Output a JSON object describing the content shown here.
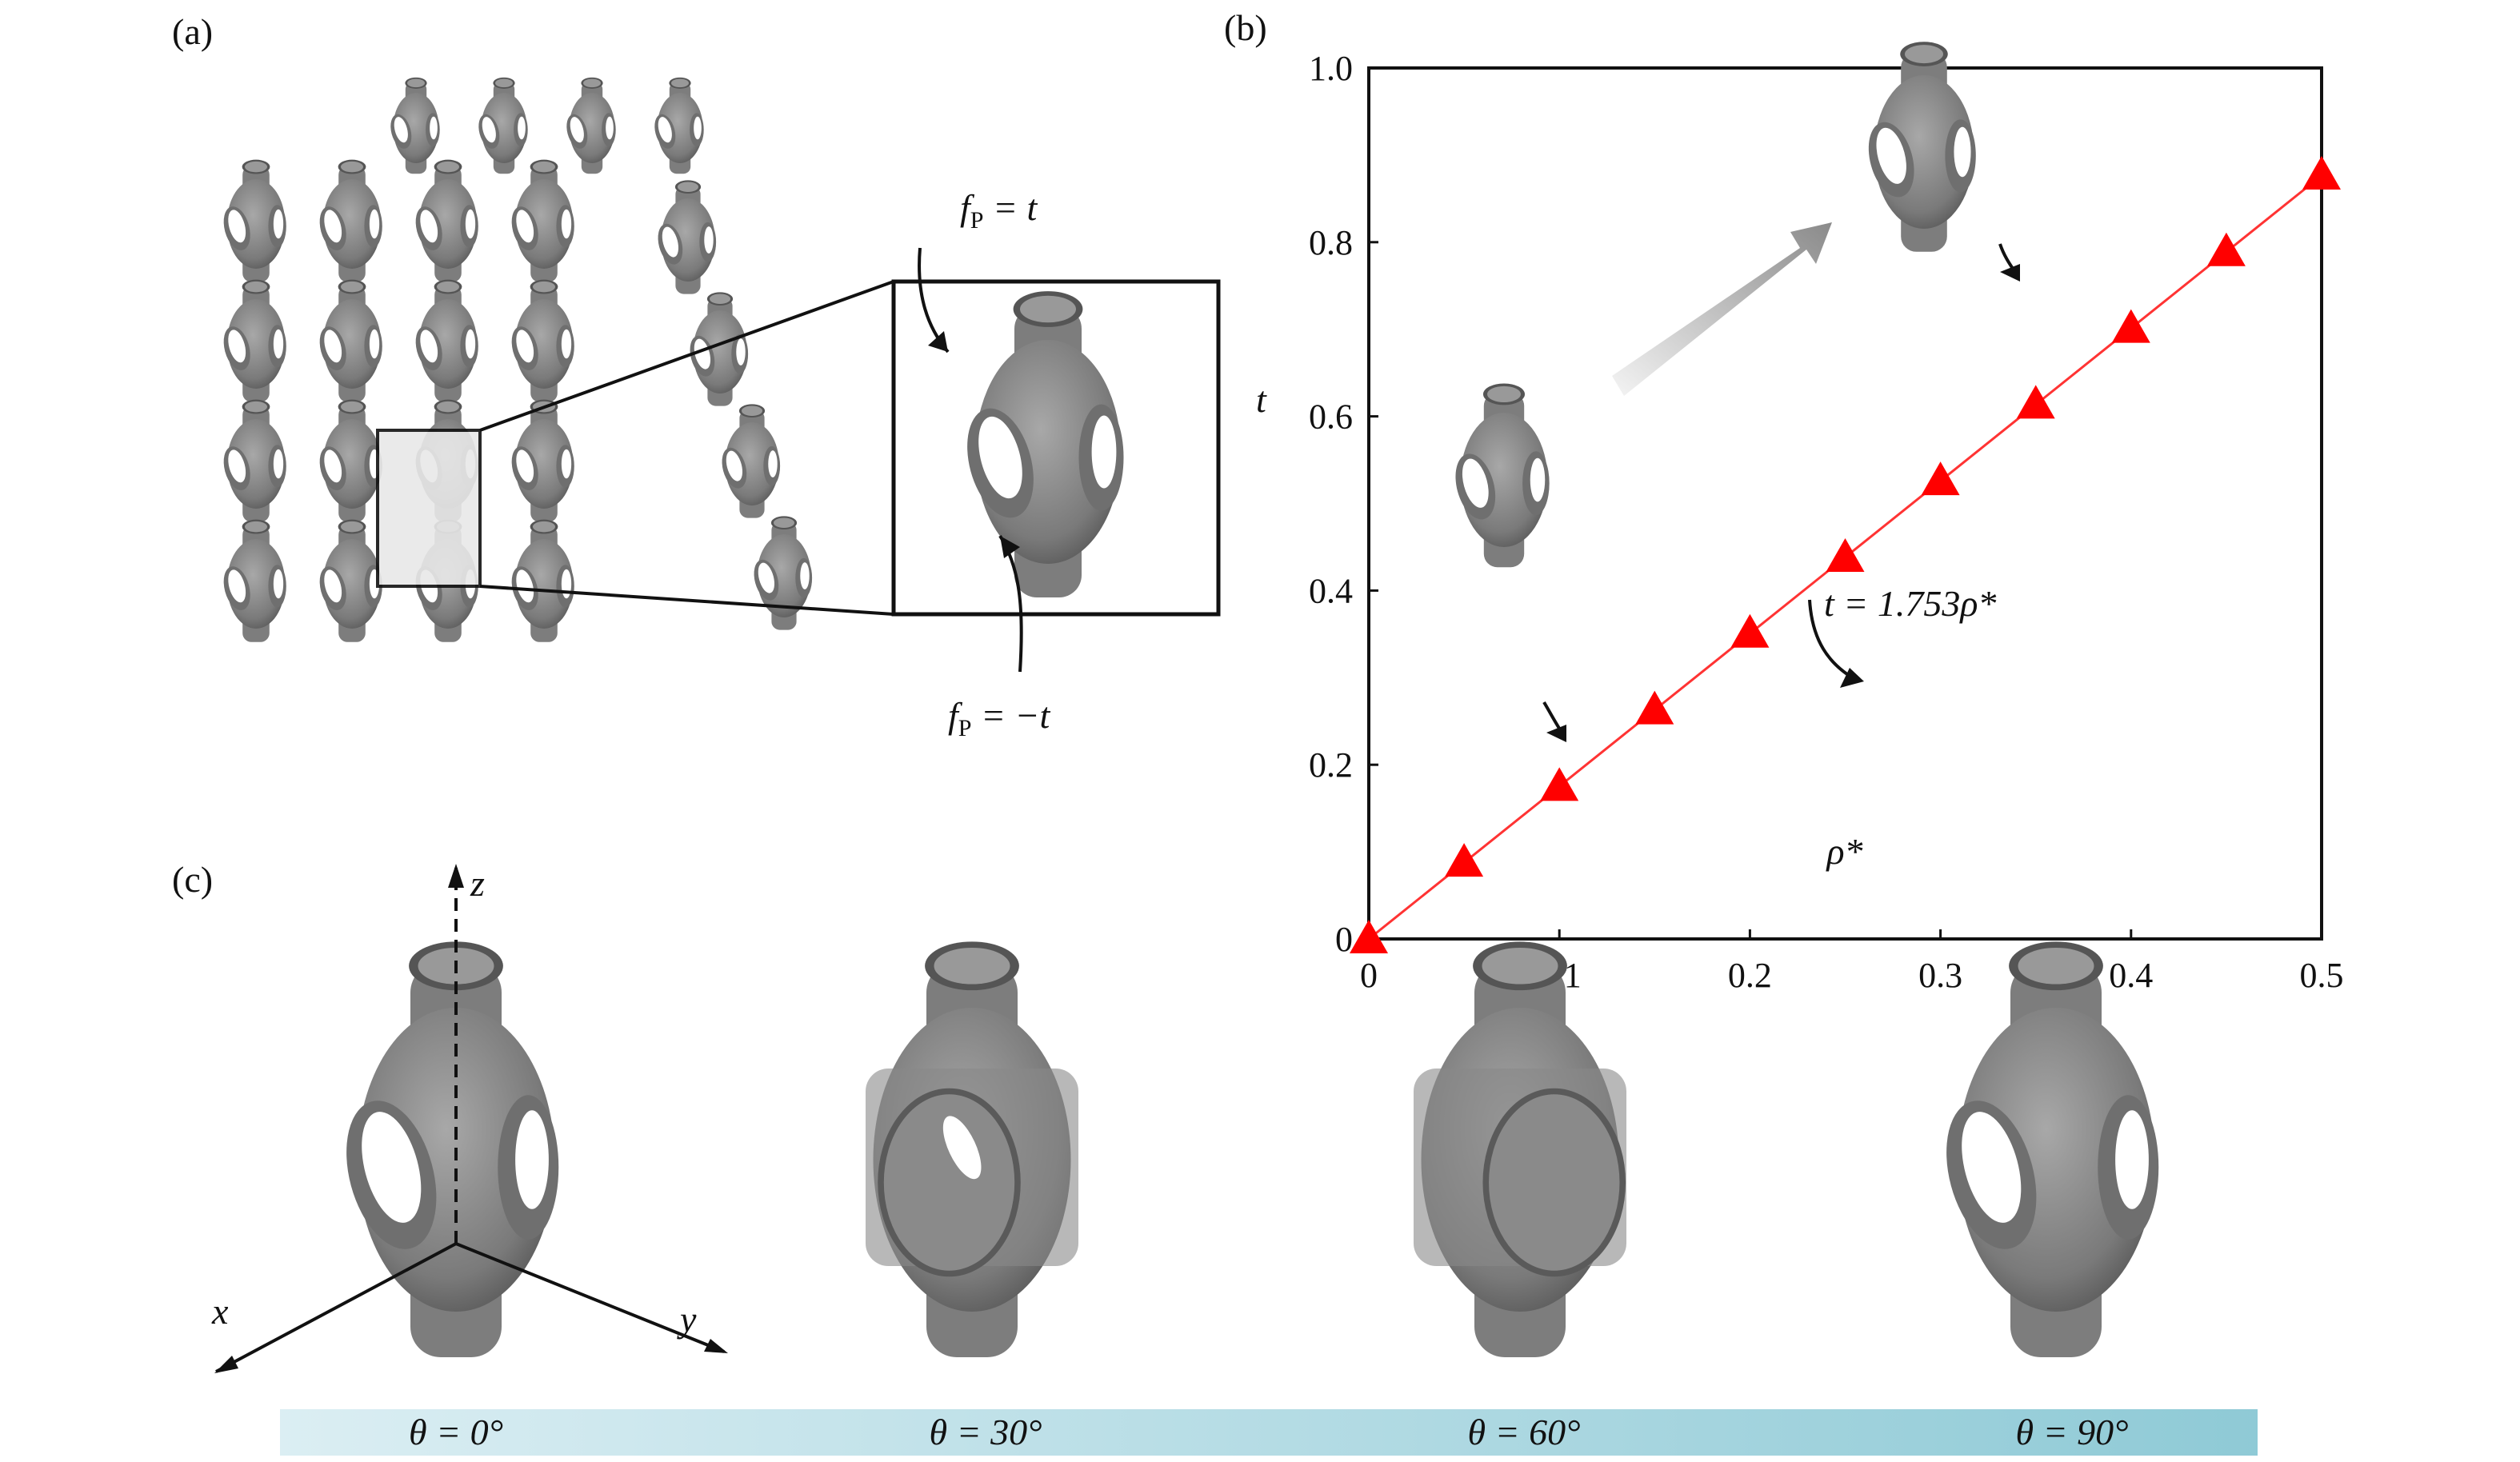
{
  "panels": {
    "a": {
      "label": "(a)",
      "surface_top": "f",
      "surface_top_sub": "P",
      "surface_top_rhs": " = t",
      "surface_bottom": "f",
      "surface_bottom_sub": "P",
      "surface_bottom_rhs": " = −t"
    },
    "b": {
      "label": "(b)"
    },
    "c": {
      "label": "(c)",
      "axes": {
        "x": "x",
        "y": "y",
        "z": "z"
      },
      "orientations": [
        "θ = 0°",
        "θ = 30°",
        "θ = 60°",
        "θ = 90°"
      ],
      "bar_colors": [
        "#dbeef3",
        "#8fcad6"
      ]
    }
  },
  "chart_data": {
    "type": "line",
    "xlabel": "ρ*",
    "ylabel": "t",
    "xlim": [
      0,
      0.5
    ],
    "ylim": [
      0,
      1.0
    ],
    "xticks": [
      "0",
      "0.1",
      "0.2",
      "0.3",
      "0.4",
      "0.5"
    ],
    "yticks": [
      "0",
      "0.2",
      "0.4",
      "0.6",
      "0.8",
      "1.0"
    ],
    "series": [
      {
        "marker": "triangle",
        "color": "#ff0000",
        "x": [
          0,
          0.05,
          0.1,
          0.15,
          0.2,
          0.25,
          0.3,
          0.35,
          0.4,
          0.45,
          0.5
        ],
        "y": [
          0,
          0.088,
          0.175,
          0.263,
          0.351,
          0.438,
          0.526,
          0.614,
          0.701,
          0.789,
          0.877
        ]
      }
    ],
    "fit_slope": 1.753,
    "annotation": "t = 1.753ρ*",
    "grid": false
  }
}
